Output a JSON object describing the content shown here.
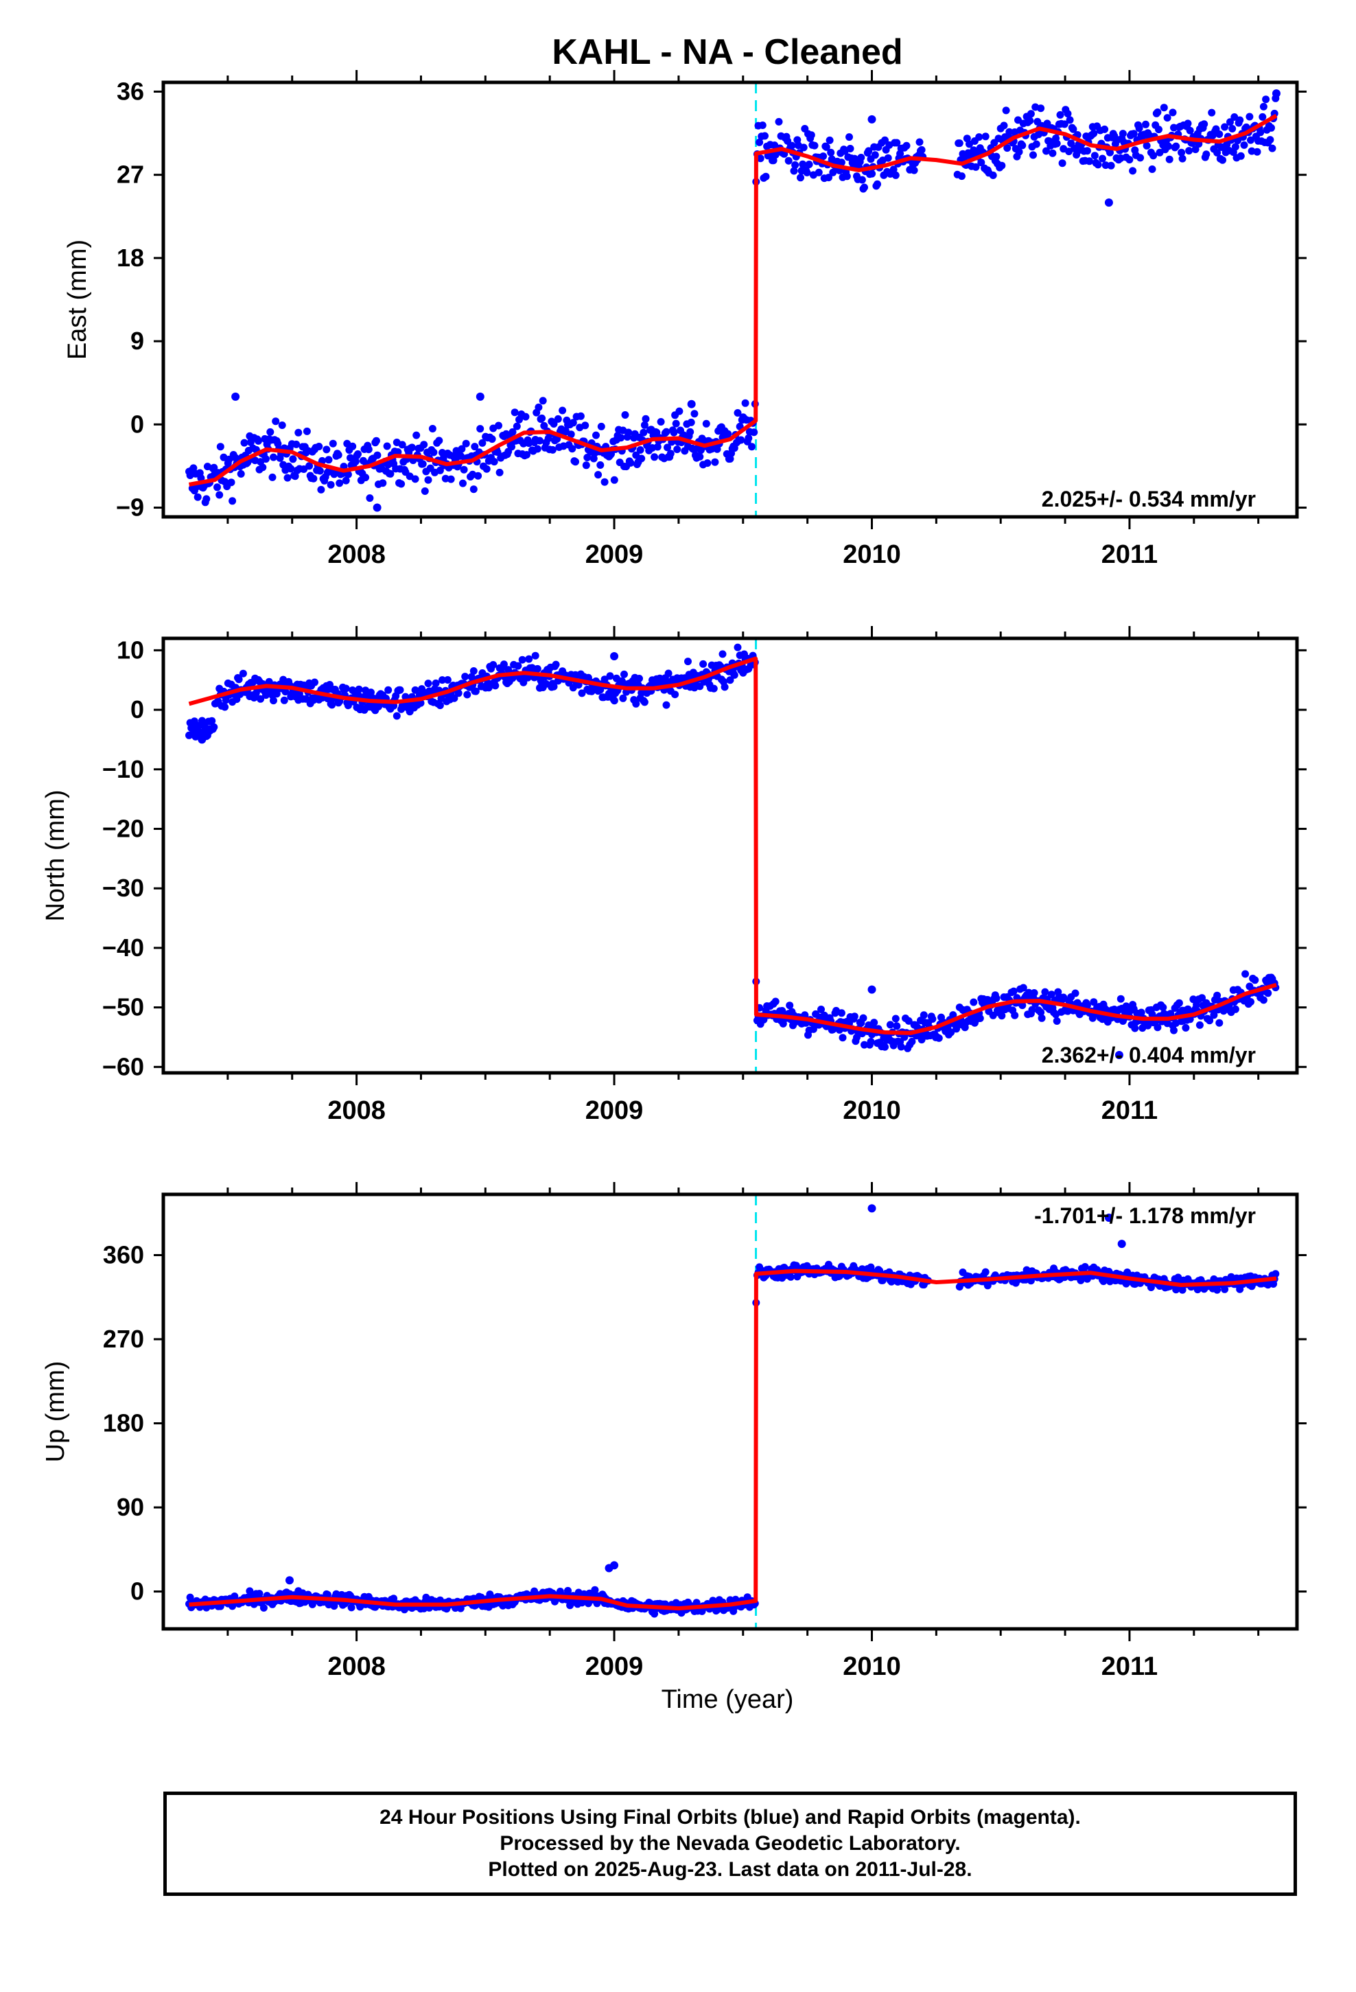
{
  "title": "KAHL  - NA - Cleaned",
  "xlabel": "Time (year)",
  "footer": {
    "line1": "24 Hour Positions Using Final Orbits (blue) and Rapid Orbits (magenta).",
    "line2": "Processed by the Nevada Geodetic Laboratory.",
    "line3": "Plotted on 2025-Aug-23. Last data on 2011-Jul-28."
  },
  "colors": {
    "points": "#0000ff",
    "fit": "#ff0000",
    "offset_line": "#00e5ee",
    "frame": "#000000"
  },
  "chart_data": [
    {
      "type": "scatter",
      "ylabel": "East (mm)",
      "rate_text": "2.025+/- 0.534 mm/yr",
      "xlim": [
        2007.25,
        2011.65
      ],
      "ylim": [
        -10,
        37
      ],
      "yticks": [
        -9,
        0,
        9,
        18,
        27,
        36
      ],
      "xticks": [
        2008,
        2009,
        2010,
        2011
      ],
      "offset_epoch": 2009.55,
      "data_start": 2007.35,
      "data_end": 2011.57,
      "fit": [
        [
          2007.35,
          -6.5
        ],
        [
          2007.45,
          -6.0
        ],
        [
          2007.55,
          -4.0
        ],
        [
          2007.65,
          -2.7
        ],
        [
          2007.75,
          -3.0
        ],
        [
          2007.85,
          -4.3
        ],
        [
          2007.95,
          -5.0
        ],
        [
          2008.05,
          -4.5
        ],
        [
          2008.15,
          -3.4
        ],
        [
          2008.25,
          -3.5
        ],
        [
          2008.35,
          -4.3
        ],
        [
          2008.45,
          -3.9
        ],
        [
          2008.55,
          -2.3
        ],
        [
          2008.65,
          -0.9
        ],
        [
          2008.75,
          -0.8
        ],
        [
          2008.85,
          -1.8
        ],
        [
          2008.95,
          -2.8
        ],
        [
          2009.05,
          -2.5
        ],
        [
          2009.15,
          -1.6
        ],
        [
          2009.25,
          -1.5
        ],
        [
          2009.35,
          -2.3
        ],
        [
          2009.45,
          -1.6
        ],
        [
          2009.549,
          0.4
        ],
        [
          2009.551,
          29.3
        ],
        [
          2009.65,
          29.8
        ],
        [
          2009.75,
          29.0
        ],
        [
          2009.85,
          28.0
        ],
        [
          2009.95,
          27.5
        ],
        [
          2010.05,
          28.0
        ],
        [
          2010.15,
          28.8
        ],
        [
          2010.25,
          28.6
        ],
        [
          2010.35,
          28.2
        ],
        [
          2010.45,
          29.3
        ],
        [
          2010.55,
          31.0
        ],
        [
          2010.65,
          32.0
        ],
        [
          2010.75,
          31.4
        ],
        [
          2010.85,
          30.2
        ],
        [
          2010.95,
          29.8
        ],
        [
          2011.05,
          30.6
        ],
        [
          2011.15,
          31.2
        ],
        [
          2011.25,
          30.8
        ],
        [
          2011.35,
          30.6
        ],
        [
          2011.45,
          31.5
        ],
        [
          2011.57,
          33.4
        ]
      ],
      "outliers": [
        [
          2010.0,
          33.0
        ],
        [
          2009.3,
          2.2
        ],
        [
          2008.48,
          3.0
        ],
        [
          2007.53,
          3.0
        ],
        [
          2010.92,
          24.0
        ],
        [
          2008.08,
          -9.0
        ],
        [
          2011.57,
          35.8
        ]
      ]
    },
    {
      "type": "scatter",
      "ylabel": "North (mm)",
      "rate_text": "2.362+/- 0.404 mm/yr",
      "xlim": [
        2007.25,
        2011.65
      ],
      "ylim": [
        -61,
        12
      ],
      "yticks": [
        -60,
        -50,
        -40,
        -30,
        -20,
        -10,
        0,
        10
      ],
      "xticks": [
        2008,
        2009,
        2010,
        2011
      ],
      "offset_epoch": 2009.55,
      "data_start": 2007.35,
      "data_end": 2011.57,
      "fit": [
        [
          2007.35,
          1.0
        ],
        [
          2007.45,
          2.2
        ],
        [
          2007.55,
          3.4
        ],
        [
          2007.65,
          4.0
        ],
        [
          2007.75,
          3.7
        ],
        [
          2007.85,
          2.8
        ],
        [
          2007.95,
          2.0
        ],
        [
          2008.05,
          1.5
        ],
        [
          2008.15,
          1.3
        ],
        [
          2008.25,
          1.8
        ],
        [
          2008.35,
          3.0
        ],
        [
          2008.45,
          4.6
        ],
        [
          2008.55,
          5.8
        ],
        [
          2008.65,
          6.2
        ],
        [
          2008.75,
          5.8
        ],
        [
          2008.85,
          5.0
        ],
        [
          2008.95,
          4.2
        ],
        [
          2009.05,
          3.6
        ],
        [
          2009.15,
          3.6
        ],
        [
          2009.25,
          4.2
        ],
        [
          2009.35,
          5.5
        ],
        [
          2009.45,
          7.2
        ],
        [
          2009.549,
          8.6
        ],
        [
          2009.551,
          -51.2
        ],
        [
          2009.65,
          -51.5
        ],
        [
          2009.75,
          -52.0
        ],
        [
          2009.85,
          -52.8
        ],
        [
          2009.95,
          -53.6
        ],
        [
          2010.05,
          -54.2
        ],
        [
          2010.15,
          -54.3
        ],
        [
          2010.25,
          -53.3
        ],
        [
          2010.35,
          -51.5
        ],
        [
          2010.45,
          -49.9
        ],
        [
          2010.55,
          -49.0
        ],
        [
          2010.65,
          -48.9
        ],
        [
          2010.75,
          -49.6
        ],
        [
          2010.85,
          -50.6
        ],
        [
          2010.95,
          -51.4
        ],
        [
          2011.05,
          -51.9
        ],
        [
          2011.15,
          -51.9
        ],
        [
          2011.25,
          -51.2
        ],
        [
          2011.35,
          -49.6
        ],
        [
          2011.45,
          -47.7
        ],
        [
          2011.57,
          -46.2
        ]
      ],
      "outliers": [
        [
          2007.37,
          -4.0
        ],
        [
          2007.4,
          -5.0
        ],
        [
          2007.43,
          -3.5
        ],
        [
          2009.0,
          9.0
        ],
        [
          2010.0,
          -47.0
        ],
        [
          2010.38,
          -51.0
        ],
        [
          2010.96,
          -58.0
        ]
      ]
    },
    {
      "type": "scatter",
      "ylabel": "Up (mm)",
      "rate_text": "-1.701+/- 1.178 mm/yr",
      "xlim": [
        2007.25,
        2011.65
      ],
      "ylim": [
        -40,
        425
      ],
      "yticks": [
        0,
        90,
        180,
        270,
        360
      ],
      "xticks": [
        2008,
        2009,
        2010,
        2011
      ],
      "offset_epoch": 2009.55,
      "data_start": 2007.35,
      "data_end": 2011.57,
      "fit": [
        [
          2007.35,
          -14
        ],
        [
          2007.55,
          -10
        ],
        [
          2007.75,
          -6
        ],
        [
          2007.95,
          -9
        ],
        [
          2008.15,
          -14
        ],
        [
          2008.35,
          -14
        ],
        [
          2008.55,
          -9
        ],
        [
          2008.75,
          -5
        ],
        [
          2008.95,
          -8
        ],
        [
          2009.05,
          -15
        ],
        [
          2009.25,
          -18
        ],
        [
          2009.45,
          -14
        ],
        [
          2009.549,
          -10
        ],
        [
          2009.551,
          340
        ],
        [
          2009.7,
          343
        ],
        [
          2009.9,
          342
        ],
        [
          2010.1,
          337
        ],
        [
          2010.25,
          331
        ],
        [
          2010.45,
          334
        ],
        [
          2010.65,
          338
        ],
        [
          2010.85,
          341
        ],
        [
          2011.0,
          335
        ],
        [
          2011.2,
          328
        ],
        [
          2011.4,
          330
        ],
        [
          2011.57,
          335
        ]
      ],
      "outliers": [
        [
          2010.0,
          410
        ],
        [
          2010.92,
          400
        ],
        [
          2010.97,
          372
        ],
        [
          2008.98,
          25
        ],
        [
          2009.0,
          28
        ],
        [
          2007.74,
          12
        ]
      ]
    }
  ]
}
